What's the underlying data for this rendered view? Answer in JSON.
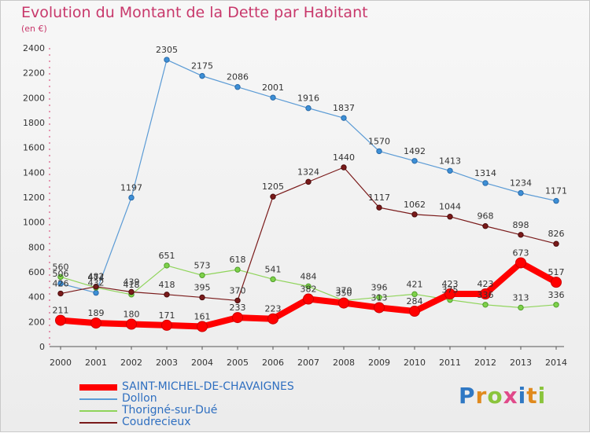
{
  "title": "Evolution du Montant de la Dette par Habitant",
  "unit": "(en €)",
  "logo_text": "Proxiti",
  "chart_data": {
    "type": "line",
    "title": "Evolution du Montant de la Dette par Habitant",
    "ylabel": "(en €)",
    "xlabel": "",
    "ylim": [
      0,
      2400
    ],
    "yticks": [
      0,
      200,
      400,
      600,
      800,
      1000,
      1200,
      1400,
      1600,
      1800,
      2000,
      2200,
      2400
    ],
    "grid": false,
    "legend": "bottom-left",
    "x": [
      "2000",
      "2001",
      "2002",
      "2003",
      "2004",
      "2005",
      "2006",
      "2007",
      "2008",
      "2009",
      "2010",
      "2011",
      "2012",
      "2013",
      "2014"
    ],
    "series": [
      {
        "name": "SAINT-MICHEL-DE-CHAVAIGNES",
        "color": "#ff0000",
        "values": [
          211,
          189,
          180,
          171,
          161,
          233,
          223,
          382,
          350,
          313,
          284,
          423,
          423,
          673,
          517
        ],
        "labels": [
          "211",
          "189",
          "180",
          "171",
          "161",
          "233",
          "223",
          "382",
          "350",
          "313",
          "284",
          "423",
          "423",
          "673",
          "517"
        ]
      },
      {
        "name": "Dollon",
        "color": "#5b9bd5",
        "values": [
          506,
          432,
          1197,
          2305,
          2175,
          2086,
          2001,
          1916,
          1837,
          1570,
          1492,
          1413,
          1314,
          1234,
          1171
        ],
        "labels": [
          "506",
          "432",
          "1197",
          "2305",
          "2175",
          "2086",
          "2001",
          "1916",
          "1837",
          "1570",
          "1492",
          "1413",
          "1314",
          "1234",
          "1171"
        ]
      },
      {
        "name": "Thorigné-sur-Dué",
        "color": "#8fd45a",
        "values": [
          560,
          474,
          418,
          651,
          573,
          618,
          541,
          484,
          370,
          396,
          421,
          375,
          336,
          313,
          336
        ],
        "labels": [
          "560",
          "474",
          "418",
          "651",
          "573",
          "618",
          "541",
          "484",
          "370",
          "396",
          "421",
          "375",
          "336",
          "313",
          "336"
        ]
      },
      {
        "name": "Coudrecieux",
        "color": "#7a1a1a",
        "values": [
          426,
          482,
          439,
          418,
          395,
          370,
          1205,
          1324,
          1440,
          1117,
          1062,
          1044,
          968,
          898,
          826
        ],
        "labels": [
          "426",
          "482",
          "439",
          "418",
          "395",
          "370",
          "1205",
          "1324",
          "1440",
          "1117",
          "1062",
          "1044",
          "968",
          "898",
          "826"
        ]
      }
    ]
  }
}
